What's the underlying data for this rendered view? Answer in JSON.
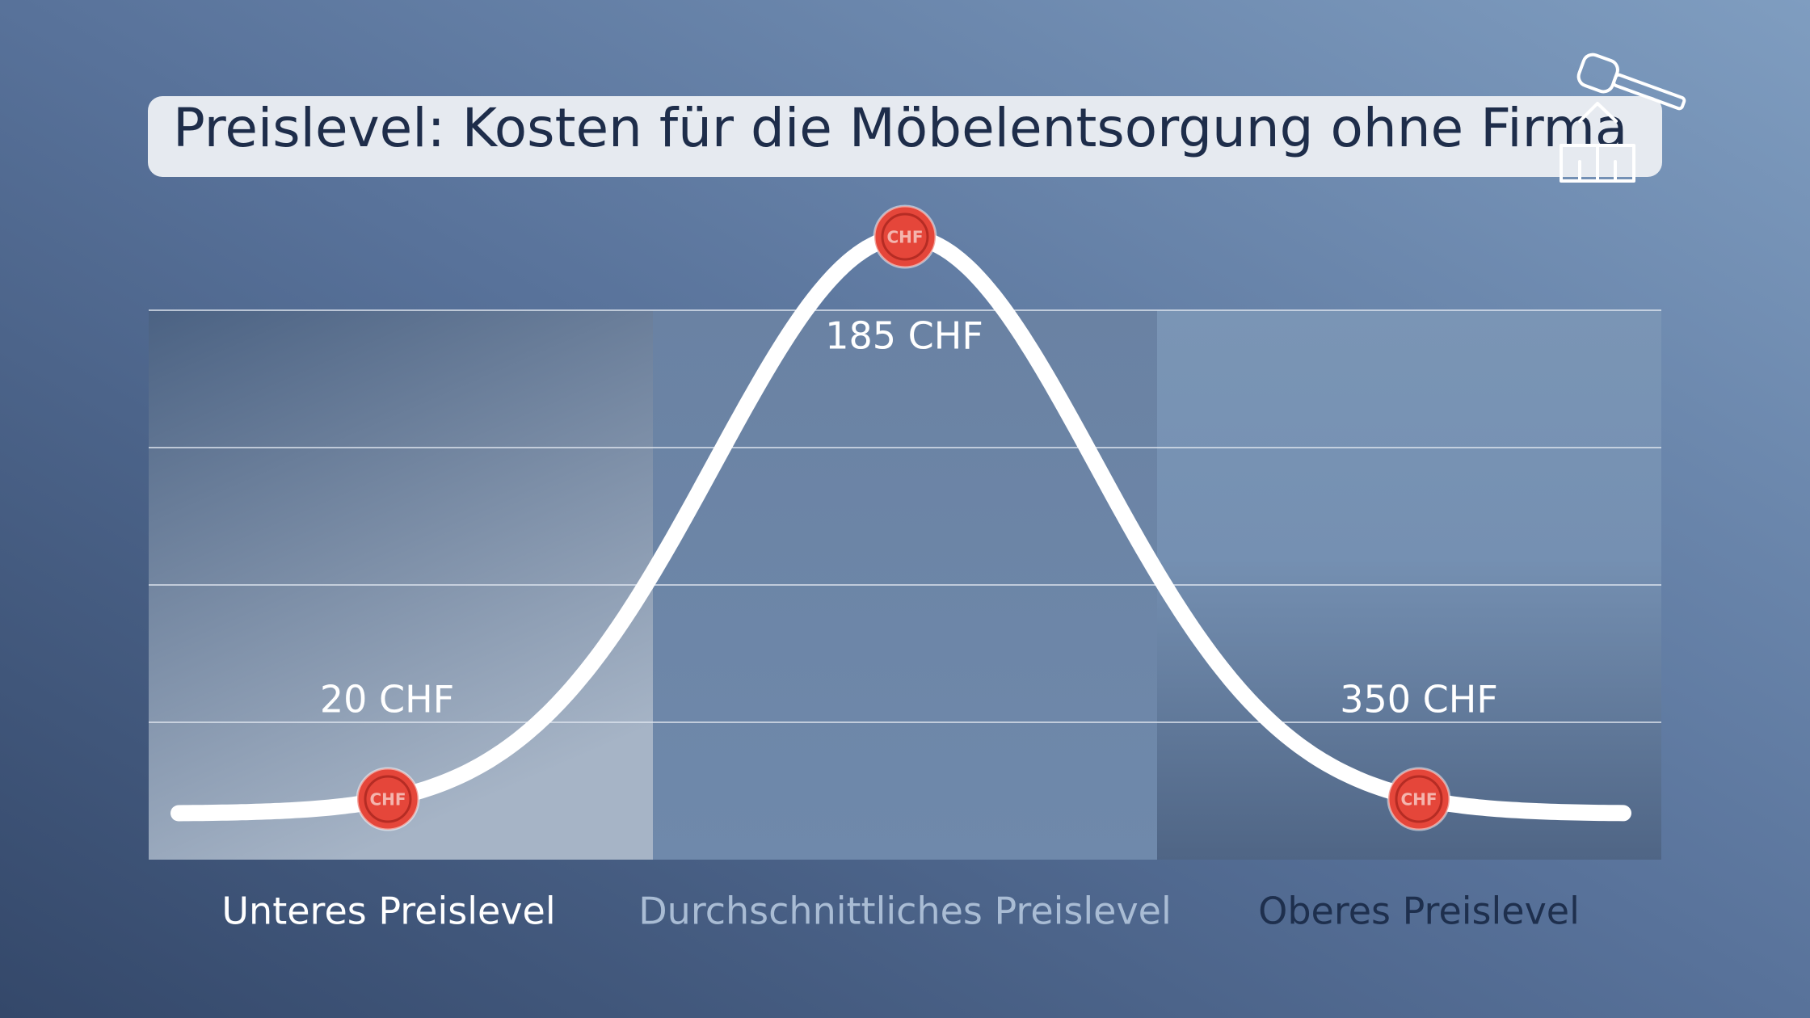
{
  "title": "Preislevel: Kosten für die Möbelentsorgung ohne Firma",
  "marker_label": "CHF",
  "levels": [
    {
      "name": "Unteres Preislevel",
      "price": "20 CHF"
    },
    {
      "name": "Durchschnittliches Preislevel",
      "price": "185 CHF"
    },
    {
      "name": "Oberes Preislevel",
      "price": "350 CHF"
    }
  ]
}
